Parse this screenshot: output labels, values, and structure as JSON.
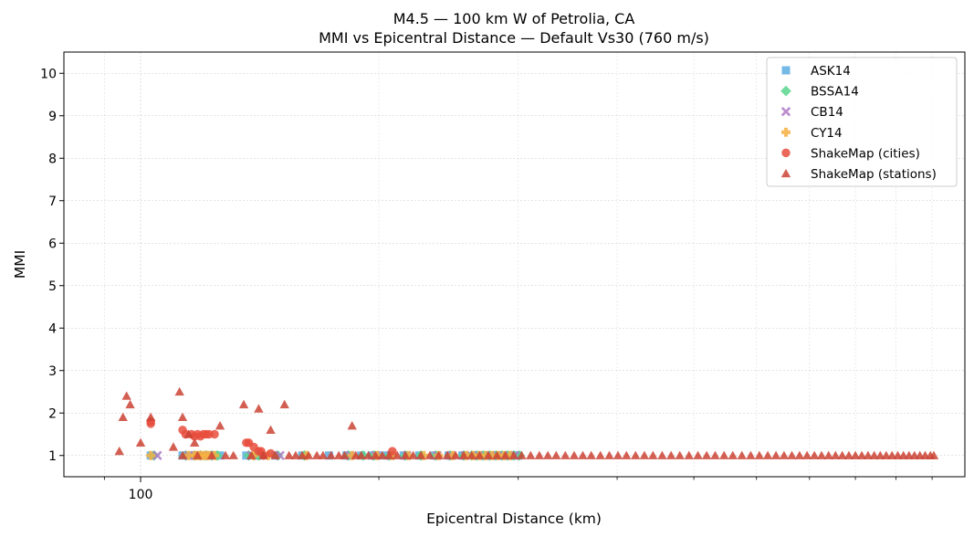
{
  "chart_data": {
    "type": "scatter",
    "title": "M4.5 — 100 km W of Petrolia, CA",
    "subtitle": "MMI vs Epicentral Distance — Default Vs30 (760 m/s)",
    "xlabel": "Epicentral Distance (km)",
    "ylabel": "MMI",
    "x_scale": "log",
    "xlim": [
      80,
      1100
    ],
    "ylim": [
      0.5,
      10.5
    ],
    "x_tick_labels": [
      {
        "value": 100,
        "label": "100"
      }
    ],
    "x_minor_ticks": [
      90,
      200,
      300,
      400,
      500,
      600,
      700,
      800,
      900,
      1000
    ],
    "y_ticks": [
      1,
      2,
      3,
      4,
      5,
      6,
      7,
      8,
      9,
      10
    ],
    "grid": true,
    "legend_position": "top-right",
    "series": [
      {
        "name": "ASK14",
        "marker": "square",
        "color": "#5dade2",
        "x": [
          103,
          113,
          116,
          118,
          120,
          122,
          124,
          126,
          136,
          140,
          142,
          148,
          160,
          173,
          182,
          190,
          196,
          200,
          205,
          215,
          225,
          235,
          245,
          255,
          265,
          270,
          275,
          280,
          285,
          290,
          295,
          300
        ],
        "y": [
          1,
          1,
          1,
          1,
          1,
          1,
          1,
          1,
          1,
          1,
          1,
          1,
          1,
          1,
          1,
          1,
          1,
          1,
          1,
          1,
          1,
          1,
          1,
          1,
          1,
          1,
          1,
          1,
          1,
          1,
          1,
          1
        ]
      },
      {
        "name": "BSSA14",
        "marker": "diamond",
        "color": "#58d68d",
        "x": [
          104,
          114,
          117,
          119,
          121,
          123,
          125,
          137,
          141,
          149,
          161,
          183,
          191,
          197,
          206,
          216,
          226,
          236,
          246,
          256,
          262,
          266,
          271,
          276,
          281,
          286,
          291,
          296,
          301
        ],
        "y": [
          1,
          1,
          1,
          1,
          1,
          1,
          1,
          1,
          1,
          1,
          1,
          1,
          1,
          1,
          1,
          1,
          1,
          1,
          1,
          1,
          1,
          1,
          1,
          1,
          1,
          1,
          1,
          1,
          1
        ]
      },
      {
        "name": "CB14",
        "marker": "x",
        "color": "#af7ac5",
        "x": [
          105,
          115,
          118,
          120,
          122,
          138,
          150,
          184,
          198,
          207,
          217,
          237,
          247,
          257,
          267,
          277,
          287,
          297
        ],
        "y": [
          1,
          1,
          1,
          1,
          1,
          1,
          1,
          1,
          1,
          1,
          1,
          1,
          1,
          1,
          1,
          1,
          1,
          1
        ]
      },
      {
        "name": "CY14",
        "marker": "plus",
        "color": "#f5b041",
        "x": [
          103,
          115,
          117,
          118,
          119,
          120,
          121,
          122,
          124,
          139,
          145,
          162,
          185,
          199,
          208,
          218,
          228,
          238,
          248,
          258,
          263,
          268,
          273,
          278,
          283,
          288,
          293
        ],
        "y": [
          1,
          1,
          1,
          1,
          1,
          1,
          1,
          1,
          1,
          1,
          1,
          1,
          1,
          1,
          1,
          1,
          1,
          1,
          1,
          1,
          1,
          1,
          1,
          1,
          1,
          1,
          1
        ]
      },
      {
        "name": "ShakeMap (cities)",
        "marker": "circle",
        "color": "#e74c3c",
        "x": [
          103,
          103,
          113,
          114,
          116,
          117,
          118,
          119,
          120,
          121,
          122,
          124,
          136,
          137,
          139,
          141,
          142,
          143,
          146,
          208
        ],
        "y": [
          1.75,
          1.8,
          1.6,
          1.5,
          1.5,
          1.45,
          1.5,
          1.45,
          1.5,
          1.5,
          1.5,
          1.5,
          1.3,
          1.3,
          1.2,
          1.1,
          1.1,
          1.0,
          1.05,
          1.1
        ]
      },
      {
        "name": "ShakeMap (stations)",
        "marker": "triangle",
        "color": "#cb4335",
        "x": [
          94,
          95,
          96,
          97,
          100,
          103,
          110,
          112,
          113,
          115,
          117,
          126,
          135,
          138,
          141,
          143,
          146,
          152,
          185,
          113,
          118,
          123,
          128,
          131,
          148,
          154,
          157,
          160,
          163,
          167,
          170,
          174,
          178,
          181,
          187,
          190,
          194,
          198,
          202,
          206,
          211,
          216,
          221,
          226,
          232,
          238,
          244,
          250,
          256,
          262,
          268,
          275,
          282,
          289,
          296,
          303,
          311,
          319,
          327,
          335,
          344,
          353,
          362,
          371,
          381,
          391,
          401,
          411,
          422,
          433,
          444,
          456,
          468,
          480,
          493,
          506,
          519,
          532,
          546,
          560,
          575,
          590,
          605,
          620,
          635,
          650,
          665,
          680,
          695,
          710,
          725,
          740,
          755,
          770,
          785,
          800,
          815,
          830,
          845,
          860,
          875,
          890,
          905,
          920,
          935,
          950,
          965,
          980,
          995,
          1005
        ],
        "y": [
          1.1,
          1.9,
          2.4,
          2.2,
          1.3,
          1.9,
          1.2,
          2.5,
          1.9,
          1.5,
          1.3,
          1.7,
          2.2,
          1.0,
          2.1,
          1.0,
          1.6,
          2.2,
          1.7,
          1,
          1,
          1,
          1,
          1,
          1,
          1,
          1,
          1,
          1,
          1,
          1,
          1,
          1,
          1,
          1,
          1,
          1,
          1,
          1,
          1,
          1,
          1,
          1,
          1,
          1,
          1,
          1,
          1,
          1,
          1,
          1,
          1,
          1,
          1,
          1,
          1,
          1,
          1,
          1,
          1,
          1,
          1,
          1,
          1,
          1,
          1,
          1,
          1,
          1,
          1,
          1,
          1,
          1,
          1,
          1,
          1,
          1,
          1,
          1,
          1,
          1,
          1,
          1,
          1,
          1,
          1,
          1,
          1,
          1,
          1,
          1,
          1,
          1,
          1,
          1,
          1,
          1,
          1,
          1,
          1,
          1,
          1,
          1,
          1,
          1,
          1,
          1,
          1,
          1,
          1
        ]
      }
    ]
  }
}
